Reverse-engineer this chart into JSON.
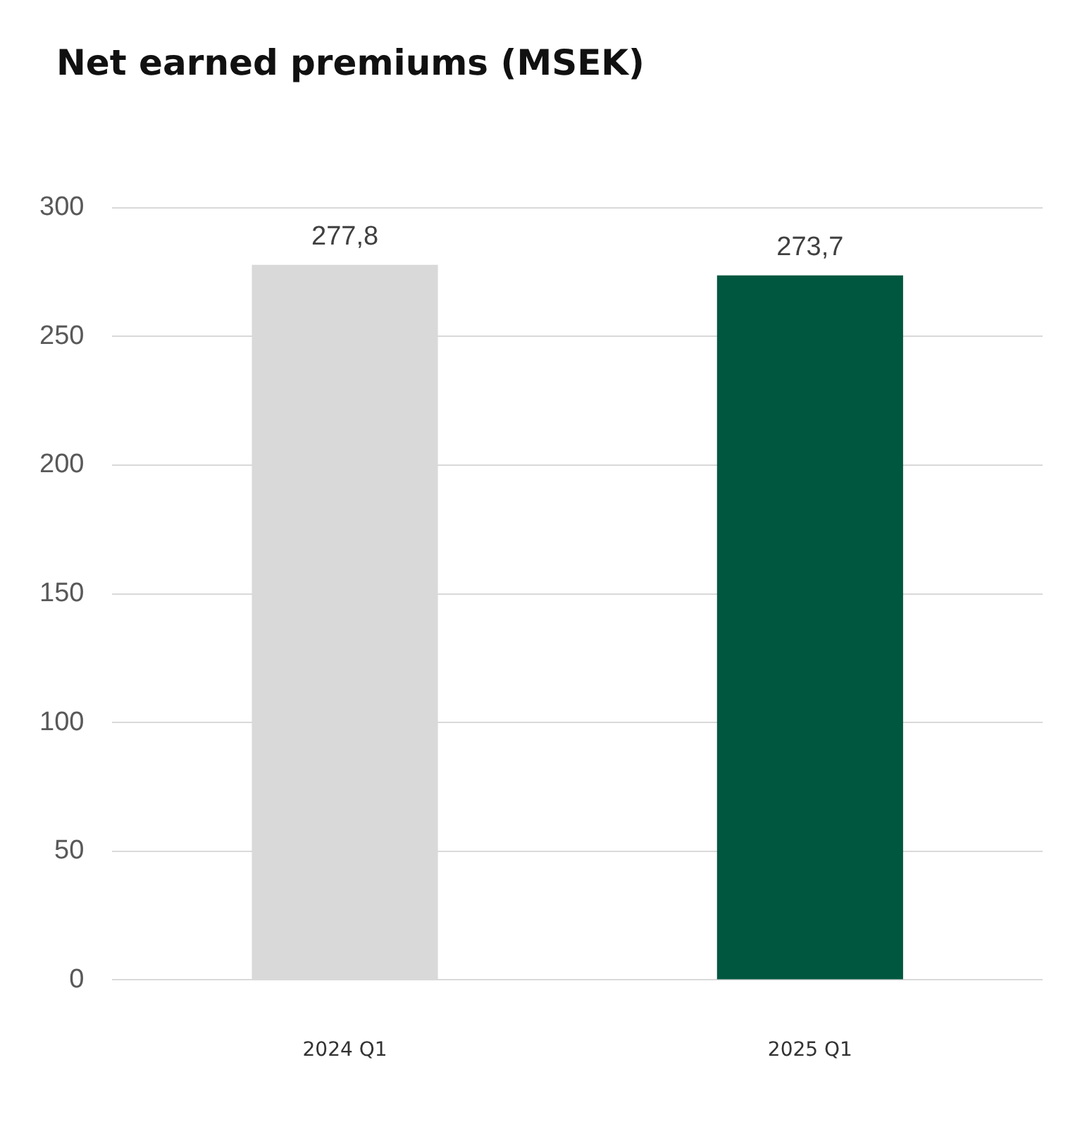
{
  "chart_data": {
    "type": "bar",
    "title": "Net earned premiums (MSEK)",
    "categories": [
      "2024 Q1",
      "2025 Q1"
    ],
    "values": [
      277.8,
      273.7
    ],
    "colors": [
      "#d9d9d9",
      "#00573f"
    ],
    "value_labels": [
      "277,8",
      "273,7"
    ],
    "ylim": [
      0,
      300
    ],
    "yticks": [
      0,
      50,
      100,
      150,
      200,
      250,
      300
    ],
    "grid": "y",
    "legend": false
  }
}
